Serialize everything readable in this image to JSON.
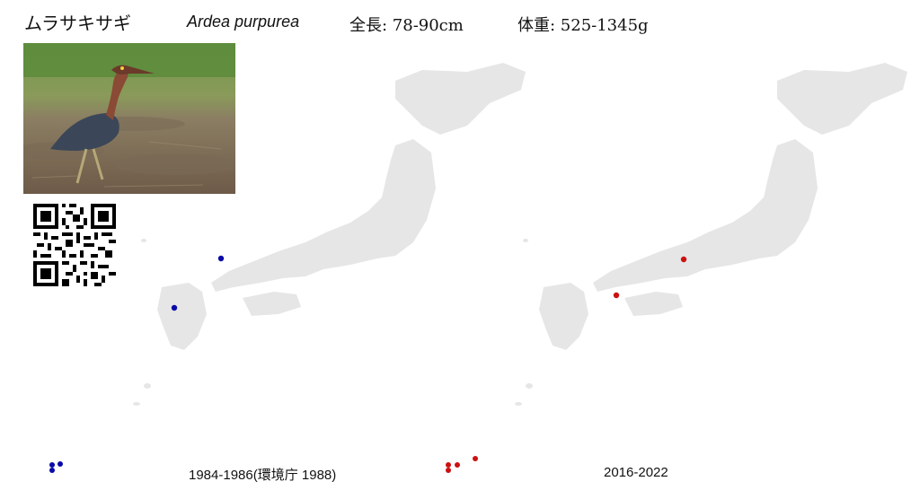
{
  "header": {
    "japanese_name": "ムラサキサギ",
    "scientific_name": "Ardea purpurea",
    "length": "全長: 78-90cm",
    "weight": "体重: 525-1345g"
  },
  "photo": {
    "subject": "purple heron standing in field"
  },
  "qr_code": {
    "icon": "qr-code-icon"
  },
  "maps": [
    {
      "caption": "1984-1986(環境庁 1988)",
      "dot_color": "#0a0aa8",
      "region_color": "#e6e6e6"
    },
    {
      "caption": "2016-2022",
      "dot_color": "#cc1111",
      "region_color": "#e6e6e6"
    }
  ]
}
